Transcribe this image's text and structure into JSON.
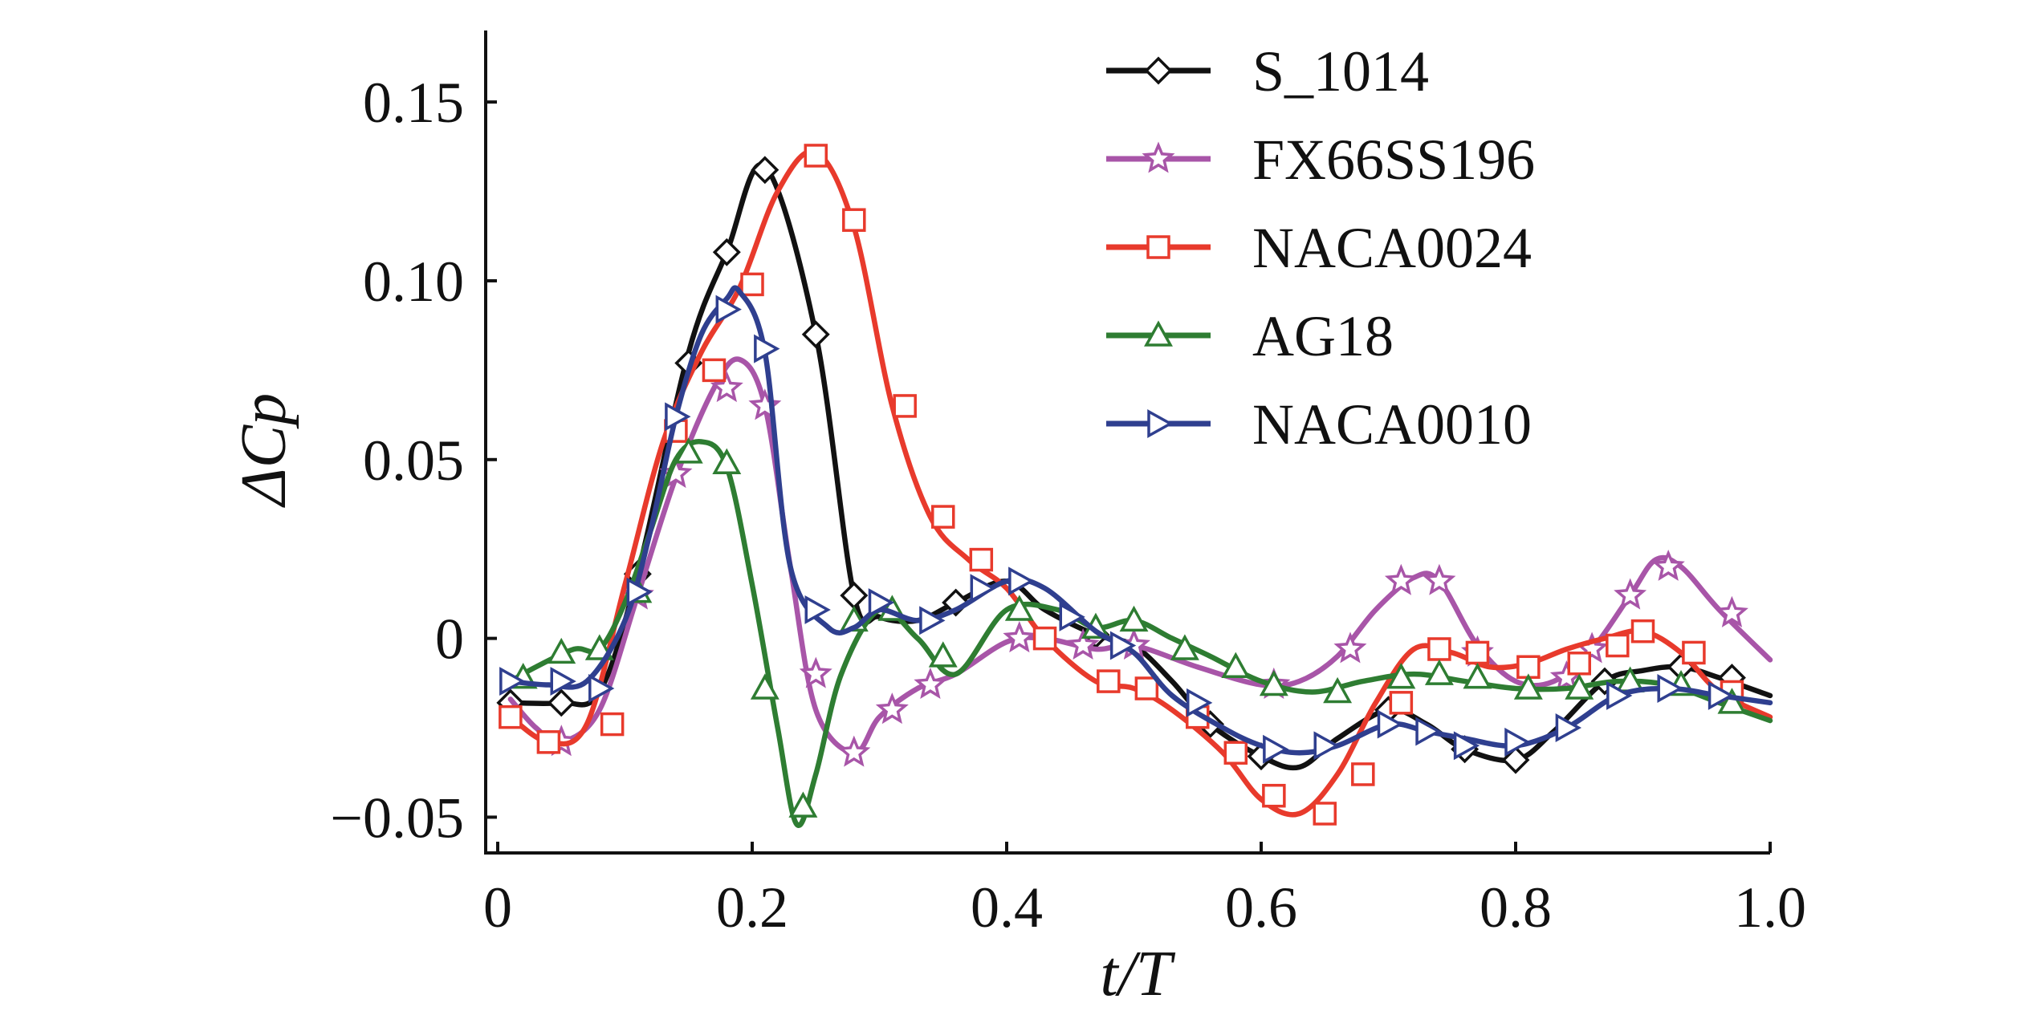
{
  "chart_data": {
    "type": "line",
    "title": "",
    "xlabel": "t/T",
    "ylabel": "ΔCp",
    "xlim": [
      0,
      1.0
    ],
    "ylim": [
      -0.06,
      0.17
    ],
    "x_ticks": [
      0,
      0.2,
      0.4,
      0.6,
      0.8,
      1.0
    ],
    "x_tick_labels": [
      "0",
      "0.2",
      "0.4",
      "0.6",
      "0.8",
      "1.0"
    ],
    "y_ticks": [
      -0.05,
      0,
      0.05,
      0.1,
      0.15
    ],
    "y_tick_labels": [
      "−0.05",
      "0",
      "0.05",
      "0.10",
      "0.15"
    ],
    "grid": false,
    "legend_position": "top-right",
    "series": [
      {
        "name": "S_1014",
        "color": "#111111",
        "marker": "diamond",
        "x": [
          0.01,
          0.05,
          0.08,
          0.11,
          0.15,
          0.18,
          0.21,
          0.25,
          0.28,
          0.3,
          0.33,
          0.36,
          0.4,
          0.43,
          0.47,
          0.5,
          0.53,
          0.56,
          0.6,
          0.63,
          0.66,
          0.7,
          0.73,
          0.76,
          0.8,
          0.83,
          0.87,
          0.9,
          0.93,
          0.96,
          1.0
        ],
        "y": [
          -0.018,
          -0.018,
          -0.015,
          0.018,
          0.08,
          0.108,
          0.132,
          0.085,
          0.012,
          0.006,
          0.005,
          0.01,
          0.016,
          0.008,
          0.001,
          -0.002,
          -0.012,
          -0.024,
          -0.033,
          -0.036,
          -0.028,
          -0.02,
          -0.024,
          -0.031,
          -0.034,
          -0.026,
          -0.012,
          -0.009,
          -0.008,
          -0.011,
          -0.016
        ],
        "markers_x": [
          0.01,
          0.05,
          0.11,
          0.15,
          0.18,
          0.21,
          0.25,
          0.28,
          0.36,
          0.47,
          0.56,
          0.6,
          0.7,
          0.76,
          0.8,
          0.87,
          0.93,
          0.97
        ],
        "markers_y": [
          -0.018,
          -0.018,
          0.018,
          0.077,
          0.108,
          0.131,
          0.085,
          0.012,
          0.01,
          0.001,
          -0.024,
          -0.033,
          -0.02,
          -0.031,
          -0.034,
          -0.012,
          -0.008,
          -0.011
        ]
      },
      {
        "name": "FX66SS196",
        "color": "#a855a8",
        "marker": "star",
        "x": [
          0.01,
          0.03,
          0.05,
          0.08,
          0.11,
          0.14,
          0.17,
          0.19,
          0.21,
          0.23,
          0.25,
          0.28,
          0.3,
          0.33,
          0.36,
          0.4,
          0.43,
          0.47,
          0.5,
          0.55,
          0.6,
          0.63,
          0.66,
          0.69,
          0.72,
          0.74,
          0.77,
          0.8,
          0.83,
          0.86,
          0.89,
          0.91,
          0.93,
          0.96,
          1.0
        ],
        "y": [
          -0.017,
          -0.025,
          -0.029,
          -0.02,
          0.012,
          0.045,
          0.07,
          0.078,
          0.065,
          0.02,
          -0.02,
          -0.032,
          -0.022,
          -0.014,
          -0.01,
          -0.001,
          0.0,
          -0.003,
          -0.002,
          -0.008,
          -0.013,
          -0.012,
          -0.005,
          0.008,
          0.017,
          0.016,
          -0.002,
          -0.012,
          -0.012,
          -0.003,
          0.012,
          0.022,
          0.02,
          0.008,
          -0.006
        ],
        "markers_x": [
          0.05,
          0.11,
          0.14,
          0.18,
          0.21,
          0.25,
          0.28,
          0.31,
          0.34,
          0.41,
          0.46,
          0.5,
          0.61,
          0.67,
          0.71,
          0.74,
          0.77,
          0.84,
          0.86,
          0.89,
          0.92,
          0.97
        ],
        "markers_y": [
          -0.029,
          0.012,
          0.046,
          0.07,
          0.065,
          -0.01,
          -0.032,
          -0.02,
          -0.013,
          0.0,
          -0.002,
          -0.002,
          -0.013,
          -0.003,
          0.016,
          0.016,
          -0.004,
          -0.011,
          -0.003,
          0.012,
          0.02,
          0.007
        ]
      },
      {
        "name": "NACA0024",
        "color": "#e83a2c",
        "marker": "square",
        "x": [
          0.01,
          0.04,
          0.07,
          0.1,
          0.13,
          0.16,
          0.19,
          0.22,
          0.25,
          0.28,
          0.31,
          0.34,
          0.37,
          0.4,
          0.43,
          0.47,
          0.5,
          0.53,
          0.57,
          0.6,
          0.63,
          0.66,
          0.69,
          0.72,
          0.75,
          0.78,
          0.81,
          0.84,
          0.87,
          0.9,
          0.93,
          0.96,
          1.0
        ],
        "y": [
          -0.022,
          -0.029,
          -0.024,
          0.015,
          0.055,
          0.08,
          0.098,
          0.125,
          0.136,
          0.115,
          0.065,
          0.034,
          0.022,
          0.014,
          0.0,
          -0.012,
          -0.014,
          -0.02,
          -0.032,
          -0.045,
          -0.049,
          -0.038,
          -0.018,
          -0.003,
          -0.004,
          -0.008,
          -0.007,
          -0.003,
          0.0,
          0.002,
          -0.004,
          -0.015,
          -0.022
        ],
        "markers_x": [
          0.01,
          0.04,
          0.09,
          0.14,
          0.17,
          0.2,
          0.25,
          0.28,
          0.32,
          0.35,
          0.38,
          0.43,
          0.48,
          0.51,
          0.55,
          0.58,
          0.61,
          0.65,
          0.68,
          0.71,
          0.74,
          0.77,
          0.81,
          0.85,
          0.88,
          0.9,
          0.94,
          0.97
        ],
        "markers_y": [
          -0.022,
          -0.029,
          -0.024,
          0.058,
          0.075,
          0.099,
          0.135,
          0.117,
          0.065,
          0.034,
          0.022,
          0.0,
          -0.012,
          -0.014,
          -0.022,
          -0.032,
          -0.044,
          -0.049,
          -0.038,
          -0.018,
          -0.003,
          -0.004,
          -0.008,
          -0.007,
          -0.002,
          0.002,
          -0.004,
          -0.015
        ]
      },
      {
        "name": "AG18",
        "color": "#2e7d32",
        "marker": "triangle-up",
        "x": [
          0.01,
          0.03,
          0.06,
          0.08,
          0.1,
          0.12,
          0.14,
          0.16,
          0.18,
          0.2,
          0.22,
          0.235,
          0.25,
          0.27,
          0.3,
          0.33,
          0.36,
          0.4,
          0.44,
          0.47,
          0.5,
          0.53,
          0.56,
          0.6,
          0.64,
          0.68,
          0.72,
          0.76,
          0.8,
          0.84,
          0.88,
          0.92,
          0.96,
          1.0
        ],
        "y": [
          -0.012,
          -0.008,
          -0.003,
          -0.003,
          0.01,
          0.03,
          0.05,
          0.055,
          0.048,
          0.015,
          -0.025,
          -0.052,
          -0.038,
          -0.01,
          0.008,
          0.0,
          -0.01,
          0.008,
          0.008,
          0.003,
          0.005,
          0.0,
          -0.005,
          -0.012,
          -0.015,
          -0.012,
          -0.01,
          -0.012,
          -0.014,
          -0.014,
          -0.012,
          -0.013,
          -0.018,
          -0.023
        ],
        "markers_x": [
          0.02,
          0.05,
          0.08,
          0.11,
          0.15,
          0.18,
          0.21,
          0.24,
          0.28,
          0.31,
          0.35,
          0.41,
          0.47,
          0.5,
          0.54,
          0.58,
          0.61,
          0.66,
          0.71,
          0.74,
          0.77,
          0.81,
          0.85,
          0.89,
          0.93,
          0.97
        ],
        "markers_y": [
          -0.011,
          -0.004,
          -0.003,
          0.013,
          0.052,
          0.049,
          -0.014,
          -0.047,
          0.005,
          0.008,
          -0.005,
          0.008,
          0.003,
          0.005,
          -0.003,
          -0.008,
          -0.013,
          -0.015,
          -0.011,
          -0.01,
          -0.011,
          -0.014,
          -0.014,
          -0.012,
          -0.013,
          -0.018
        ]
      },
      {
        "name": "NACA0010",
        "color": "#2f3f8f",
        "marker": "triangle-right",
        "x": [
          0.01,
          0.04,
          0.07,
          0.1,
          0.12,
          0.14,
          0.16,
          0.18,
          0.19,
          0.21,
          0.23,
          0.26,
          0.28,
          0.3,
          0.33,
          0.36,
          0.4,
          0.43,
          0.47,
          0.5,
          0.53,
          0.57,
          0.6,
          0.63,
          0.66,
          0.7,
          0.73,
          0.76,
          0.8,
          0.84,
          0.88,
          0.92,
          0.96,
          1.0
        ],
        "y": [
          -0.012,
          -0.013,
          -0.012,
          0.005,
          0.03,
          0.062,
          0.085,
          0.095,
          0.097,
          0.08,
          0.02,
          0.003,
          0.003,
          0.008,
          0.005,
          0.008,
          0.016,
          0.014,
          0.002,
          -0.004,
          -0.016,
          -0.025,
          -0.03,
          -0.032,
          -0.03,
          -0.024,
          -0.026,
          -0.028,
          -0.03,
          -0.025,
          -0.016,
          -0.014,
          -0.016,
          -0.018
        ],
        "markers_x": [
          0.01,
          0.05,
          0.08,
          0.11,
          0.14,
          0.18,
          0.21,
          0.25,
          0.3,
          0.34,
          0.38,
          0.41,
          0.45,
          0.49,
          0.55,
          0.61,
          0.65,
          0.7,
          0.73,
          0.76,
          0.8,
          0.84,
          0.88,
          0.92,
          0.96
        ],
        "markers_y": [
          -0.012,
          -0.012,
          -0.014,
          0.013,
          0.062,
          0.092,
          0.081,
          0.008,
          0.01,
          0.005,
          0.014,
          0.016,
          0.006,
          -0.002,
          -0.018,
          -0.031,
          -0.03,
          -0.024,
          -0.026,
          -0.03,
          -0.029,
          -0.025,
          -0.016,
          -0.014,
          -0.016
        ]
      }
    ]
  }
}
